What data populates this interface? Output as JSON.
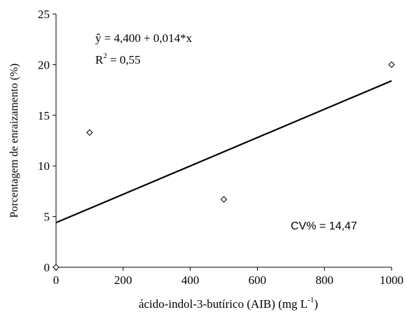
{
  "chart_data": {
    "type": "scatter",
    "x": [
      0,
      100,
      500,
      1000
    ],
    "y": [
      0,
      13.3,
      6.7,
      20
    ],
    "xlim": [
      0,
      1000
    ],
    "ylim": [
      0,
      25
    ],
    "x_ticks": [
      "0",
      "200",
      "400",
      "600",
      "800",
      "1000"
    ],
    "y_ticks": [
      "0",
      "5",
      "10",
      "15",
      "20",
      "25"
    ],
    "xlabel": "ácido-indol-3-butírico (AIB) (mg L",
    "xlabel_sup": "-1",
    "xlabel_end": ")",
    "ylabel": "Porcentagem de enraizamento (%)",
    "trendline": {
      "intercept": 4.4,
      "slope": 0.014
    },
    "equation": "ŷ = 4,400 + 0,014*x",
    "r2_prefix": "R",
    "r2_sup": "2",
    "r2_value": " = 0,55",
    "cv_label": "CV% = 14,47",
    "grid": false,
    "marker": "diamond-open",
    "colors": {
      "line": "#000000",
      "marker": "#000000"
    }
  }
}
